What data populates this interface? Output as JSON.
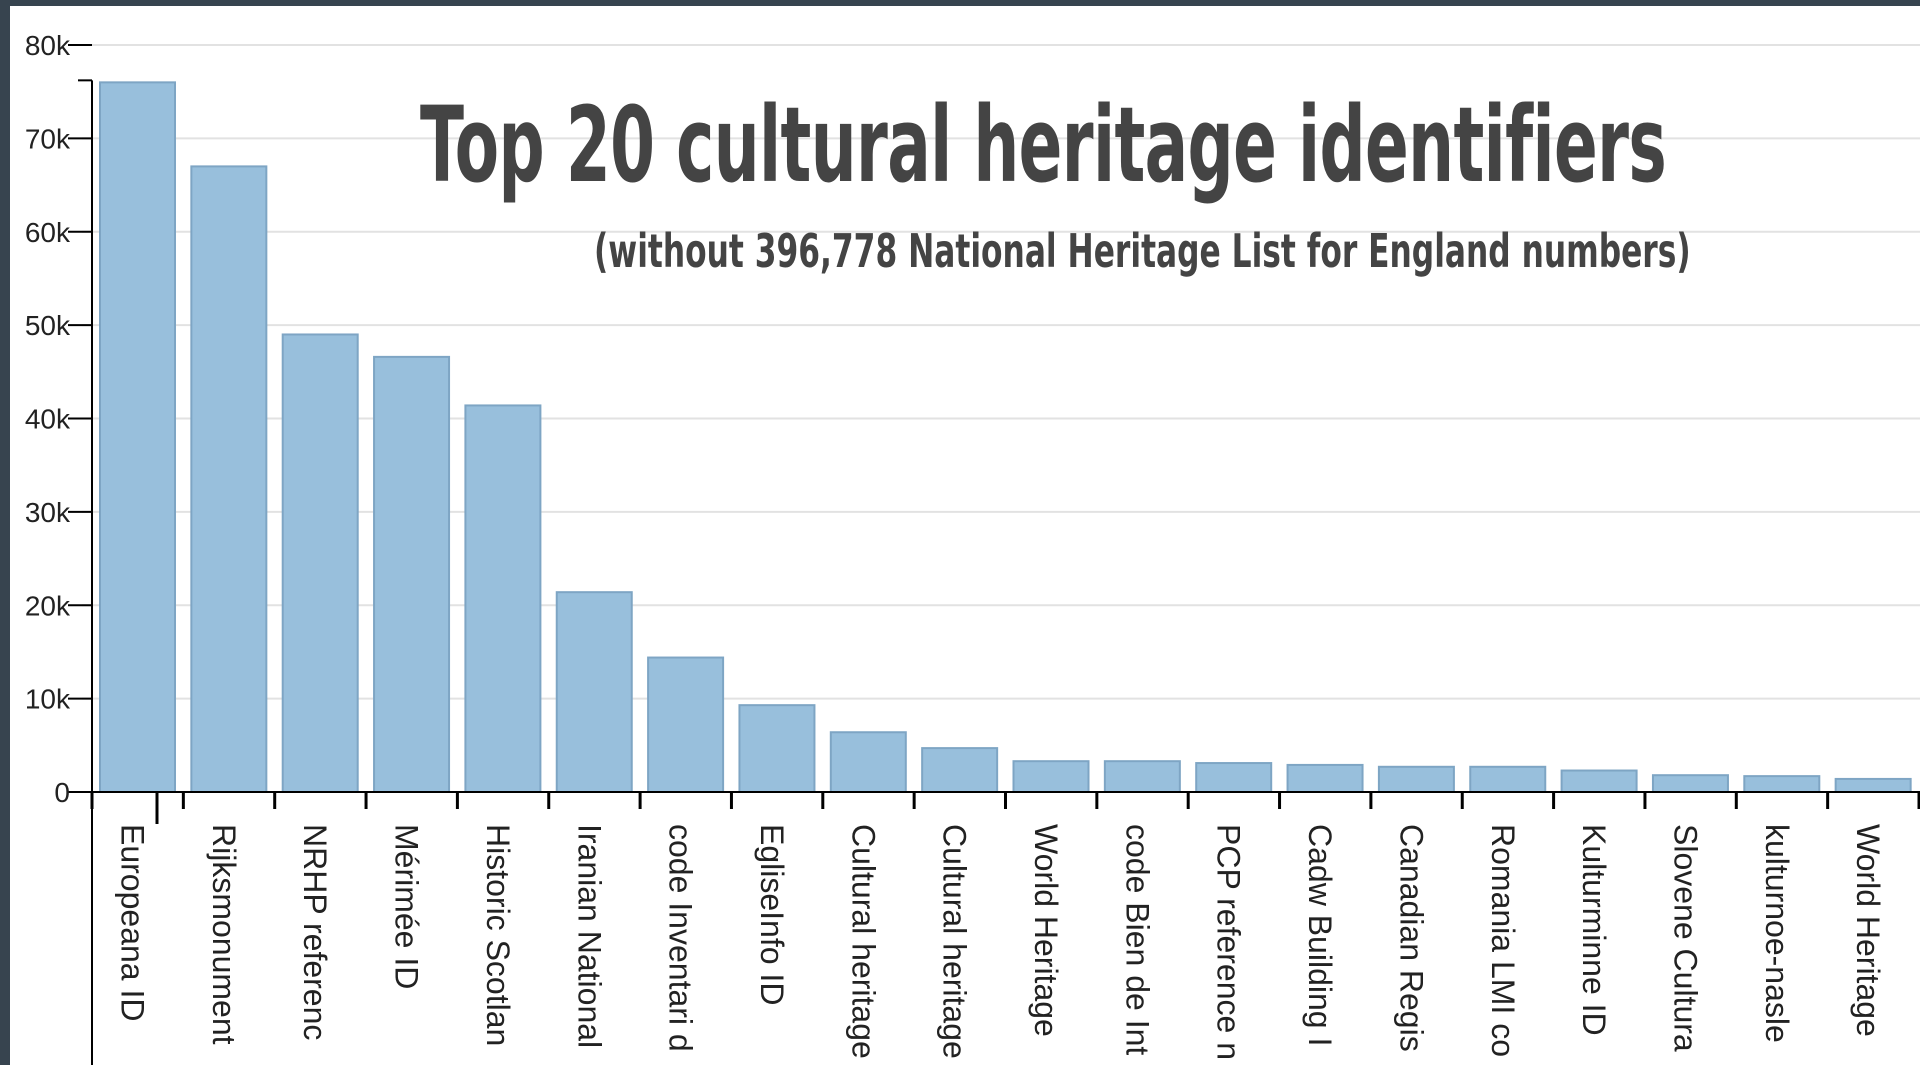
{
  "title": "Top 20 cultural heritage identifiers",
  "subtitle": "(without 396,778  National Heritage List for England numbers)",
  "colors": {
    "bar": "#98bfdc",
    "bar_stroke": "#7ea5c4",
    "grid": "#e2e2e2",
    "axis": "#000000",
    "frame": "#37444f"
  },
  "chart_data": {
    "type": "bar",
    "title": "Top 20 cultural heritage identifiers",
    "subtitle": "(without 396,778  National Heritage List for England numbers)",
    "xlabel": "",
    "ylabel": "",
    "ylim": [
      0,
      80000
    ],
    "yticks": [
      0,
      10000,
      20000,
      30000,
      40000,
      50000,
      60000,
      70000,
      80000
    ],
    "ytick_labels": [
      "0",
      "10k",
      "20k",
      "30k",
      "40k",
      "50k",
      "60k",
      "70k",
      "80k"
    ],
    "grid": true,
    "categories": [
      "Europeana ID",
      "Rijksmonument",
      "NRHP referenc",
      "Mérimée ID",
      "Historic Scotlan",
      "Iranian National",
      "code Inventari d",
      "EgliseInfo ID",
      "Cultural heritage",
      "Cultural heritage",
      "World Heritage",
      "code Bien de Int",
      "PCP reference n",
      "Cadw Building I",
      "Canadian Regis",
      "Romania LMI co",
      "Kulturminne ID",
      "Slovene Cultura",
      "kulturnoe-nasle",
      "World Heritage"
    ],
    "values": [
      76000,
      67000,
      49000,
      46600,
      41400,
      21400,
      14400,
      9300,
      6400,
      4700,
      3300,
      3300,
      3100,
      2900,
      2700,
      2700,
      2300,
      1800,
      1700,
      1400
    ]
  }
}
